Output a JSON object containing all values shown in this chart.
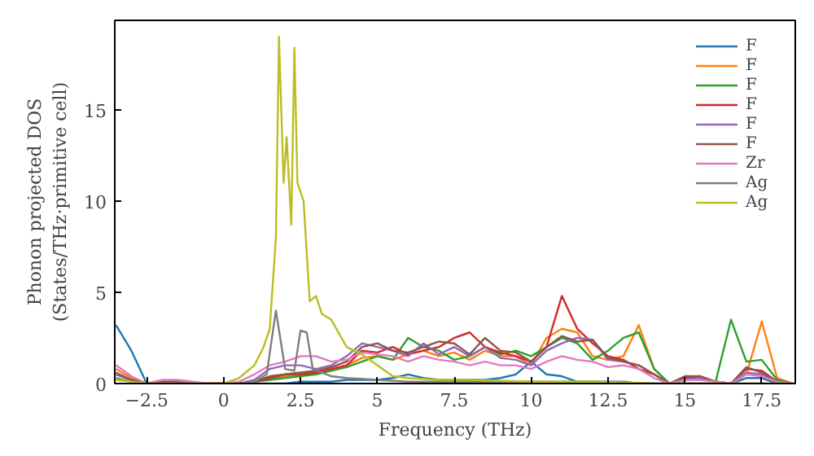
{
  "chart_data": {
    "type": "line",
    "xlabel": "Frequency (THz)",
    "ylabel": "Phonon projected DOS\n(States/THz·primitive cell)",
    "x": [
      -3.5,
      -3,
      -2.5,
      -2,
      -1.5,
      -1,
      -0.5,
      0,
      0.5,
      1,
      1.5,
      2,
      2.5,
      3,
      3.5,
      4,
      4.5,
      5,
      5.5,
      6,
      6.5,
      7,
      7.5,
      8,
      8.5,
      9,
      9.5,
      10,
      10.5,
      11,
      11.5,
      12,
      12.5,
      13,
      13.5,
      14,
      14.5,
      15,
      15.5,
      16,
      16.5,
      17,
      17.5,
      18,
      18.5
    ],
    "xlim": [
      -3.54,
      18.59
    ],
    "ylim": [
      0,
      19.9
    ],
    "xticks": [
      {
        "value": -2.5,
        "label": "−2.5"
      },
      0.0,
      2.5,
      5.0,
      7.5,
      10.0,
      12.5,
      15.0,
      17.5
    ],
    "yticks": [
      0,
      5,
      10,
      15
    ],
    "grid": false,
    "legend": "top right",
    "series": [
      {
        "name": "F",
        "color": "#1f77b4",
        "values": [
          3.2,
          1.8,
          0,
          0,
          0,
          0,
          0,
          0,
          0,
          0,
          0,
          0,
          0.1,
          0.1,
          0.1,
          0.2,
          0.2,
          0.2,
          0.3,
          0.5,
          0.3,
          0.2,
          0.2,
          0.2,
          0.2,
          0.3,
          0.5,
          1.2,
          0.5,
          0.4,
          0.1,
          0.1,
          0.1,
          0.1,
          0,
          0,
          0,
          0,
          0,
          0,
          0,
          0.3,
          0.3,
          0,
          0
        ]
      },
      {
        "name": "F",
        "color": "#ff7f0e",
        "values": [
          0.8,
          0.3,
          0,
          0.1,
          0.1,
          0,
          0,
          0,
          0,
          0.1,
          0.3,
          0.4,
          0.5,
          0.5,
          0.8,
          1.0,
          1.4,
          1.5,
          1.3,
          1.6,
          1.8,
          1.5,
          1.7,
          1.3,
          1.8,
          1.5,
          1.5,
          1.0,
          2.5,
          3.0,
          2.8,
          1.5,
          1.3,
          1.5,
          3.2,
          0.8,
          0,
          0.2,
          0.3,
          0.1,
          0,
          0.5,
          3.4,
          0.3,
          0
        ]
      },
      {
        "name": "F",
        "color": "#2ca02c",
        "x": [
          0.5,
          1,
          1.5,
          2,
          2.5,
          3,
          3.5,
          4,
          4.5,
          5,
          5.5,
          6,
          6.5,
          7,
          7.5,
          8,
          8.5,
          9,
          9.5,
          10,
          10.5,
          11,
          11.5,
          12,
          12.5,
          13,
          13.5,
          14,
          14.5,
          15,
          15.5,
          16,
          16.5,
          17,
          17.5,
          18,
          18.5
        ],
        "values": [
          0,
          0.1,
          0.2,
          0.3,
          0.4,
          0.5,
          0.7,
          0.9,
          1.2,
          1.5,
          1.3,
          2.5,
          2.0,
          1.8,
          1.3,
          1.5,
          2.0,
          1.6,
          1.8,
          1.5,
          2.0,
          2.5,
          2.2,
          1.3,
          1.8,
          2.5,
          2.8,
          0.8,
          0,
          0.2,
          0.3,
          0.1,
          3.5,
          1.2,
          1.3,
          0.2,
          0
        ]
      },
      {
        "name": "F",
        "color": "#d62728",
        "values": [
          0.6,
          0.2,
          0,
          0.1,
          0.1,
          0,
          0,
          0,
          0,
          0.1,
          0.3,
          0.5,
          0.5,
          0.6,
          0.8,
          1.0,
          1.8,
          1.7,
          2.0,
          1.6,
          1.8,
          2.0,
          2.5,
          2.8,
          2.0,
          1.7,
          1.5,
          1.2,
          2.0,
          4.8,
          3.0,
          2.2,
          1.5,
          1.3,
          0.8,
          0.5,
          0,
          0.3,
          0.4,
          0.1,
          0,
          0.8,
          0.7,
          0.1,
          0
        ]
      },
      {
        "name": "F",
        "color": "#9467bd",
        "values": [
          0.6,
          0.2,
          0,
          0.1,
          0.1,
          0,
          0,
          0,
          0,
          0.2,
          0.8,
          1.0,
          1.0,
          0.8,
          1.0,
          1.5,
          2.2,
          2.0,
          1.8,
          1.5,
          2.2,
          1.6,
          2.0,
          1.5,
          2.0,
          1.4,
          1.3,
          1.0,
          1.8,
          2.2,
          2.5,
          2.4,
          1.3,
          1.2,
          1.0,
          0.5,
          0,
          0.2,
          0.3,
          0.1,
          0,
          0.6,
          0.5,
          0.1,
          0
        ]
      },
      {
        "name": "F",
        "color": "#8c564b",
        "values": [
          0.5,
          0.2,
          0,
          0.1,
          0.1,
          0,
          0,
          0,
          0,
          0.1,
          0.4,
          0.5,
          0.6,
          0.7,
          0.9,
          1.2,
          2.0,
          2.2,
          1.8,
          1.7,
          2.0,
          2.3,
          2.2,
          1.6,
          2.5,
          1.8,
          1.7,
          1.2,
          2.0,
          2.6,
          2.3,
          2.4,
          1.4,
          1.2,
          1.0,
          0.5,
          0,
          0.4,
          0.4,
          0.1,
          0,
          0.9,
          0.6,
          0.1,
          0
        ]
      },
      {
        "name": "Zr",
        "color": "#e377c2",
        "values": [
          1.0,
          0.4,
          0,
          0.2,
          0.2,
          0.1,
          0,
          0,
          0.1,
          0.5,
          1.0,
          1.2,
          1.5,
          1.5,
          1.2,
          1.3,
          1.7,
          1.6,
          1.5,
          1.2,
          1.5,
          1.3,
          1.2,
          1.0,
          1.2,
          1.0,
          1.0,
          0.8,
          1.2,
          1.5,
          1.3,
          1.2,
          0.9,
          1.0,
          0.8,
          0.3,
          0,
          0.2,
          0.2,
          0.1,
          0,
          0.5,
          0.4,
          0.1,
          0
        ]
      },
      {
        "name": "Ag",
        "color": "#7f7f7f",
        "x": [
          -3.5,
          -3,
          -2.5,
          0,
          0.5,
          1,
          1.4,
          1.7,
          2.0,
          2.3,
          2.5,
          2.7,
          2.9,
          3.2,
          3.5,
          4,
          5,
          6,
          8,
          10,
          12,
          14,
          15,
          18.5
        ],
        "values": [
          0.3,
          0.1,
          0,
          0,
          0,
          0.1,
          0.5,
          4.0,
          0.8,
          0.7,
          2.9,
          2.8,
          0.8,
          0.6,
          0.4,
          0.3,
          0.2,
          0.1,
          0.1,
          0.1,
          0.1,
          0,
          0,
          0
        ]
      },
      {
        "name": "Ag",
        "color": "#bcbd22",
        "x": [
          -3.5,
          -3,
          -2.5,
          0,
          0.5,
          1,
          1.3,
          1.5,
          1.7,
          1.8,
          1.95,
          2.05,
          2.2,
          2.3,
          2.4,
          2.6,
          2.8,
          3.0,
          3.2,
          3.5,
          4,
          4.5,
          5,
          5.5,
          6,
          7,
          8,
          10,
          12,
          14,
          18.5
        ],
        "values": [
          0.2,
          0.1,
          0,
          0,
          0.3,
          1.0,
          2.0,
          3.0,
          8,
          19.0,
          11,
          13.5,
          8.7,
          18.4,
          11,
          10,
          4.5,
          4.8,
          3.8,
          3.5,
          2.0,
          1.6,
          1.0,
          0.4,
          0.3,
          0.2,
          0.2,
          0.1,
          0.1,
          0,
          0
        ]
      }
    ]
  }
}
